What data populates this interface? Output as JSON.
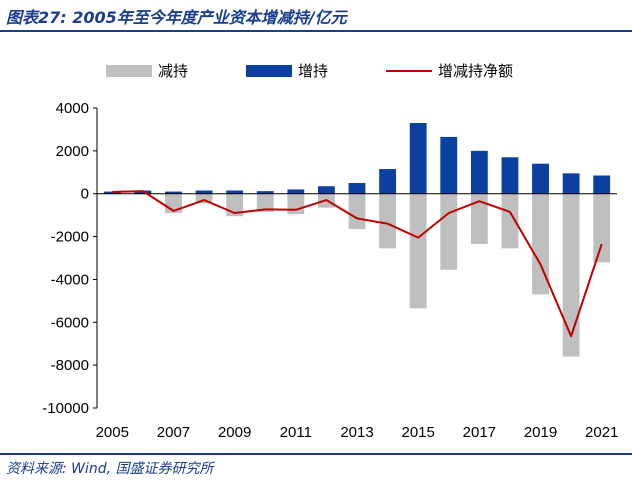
{
  "header": {
    "title": "图表27: 2005年至今年度产业资本增减持/亿元"
  },
  "footer": {
    "source": "资料来源: Wind, 国盛证券研究所"
  },
  "colors": {
    "decrease": "#bfbfbf",
    "increase": "#0b3fa0",
    "net": "#c00000",
    "brand": "#1a3d8f"
  },
  "chart_data": {
    "type": "bar",
    "x": [
      2005,
      2006,
      2007,
      2008,
      2009,
      2010,
      2011,
      2012,
      2013,
      2014,
      2015,
      2016,
      2017,
      2018,
      2019,
      2020,
      2021
    ],
    "x_tick_labels": [
      "2005",
      "2007",
      "2009",
      "2011",
      "2013",
      "2015",
      "2017",
      "2019",
      "2021"
    ],
    "series": [
      {
        "name": "减持",
        "type": "bar",
        "values": [
          -20,
          -30,
          -900,
          -450,
          -1050,
          -850,
          -950,
          -650,
          -1650,
          -2550,
          -5350,
          -3550,
          -2350,
          -2550,
          -4700,
          -7600,
          -3200
        ]
      },
      {
        "name": "增持",
        "type": "bar",
        "values": [
          100,
          150,
          100,
          150,
          150,
          120,
          200,
          350,
          500,
          1150,
          3300,
          2650,
          2000,
          1700,
          1400,
          950,
          850
        ]
      },
      {
        "name": "增减持净额",
        "type": "line",
        "values": [
          80,
          120,
          -800,
          -300,
          -900,
          -730,
          -750,
          -300,
          -1150,
          -1400,
          -2050,
          -900,
          -350,
          -850,
          -3300,
          -6650,
          -2350
        ]
      }
    ],
    "ylim": [
      -10000,
      4000
    ],
    "yticks": [
      -10000,
      -8000,
      -6000,
      -4000,
      -2000,
      0,
      2000,
      4000
    ],
    "legend_position": "top",
    "grid": false
  }
}
